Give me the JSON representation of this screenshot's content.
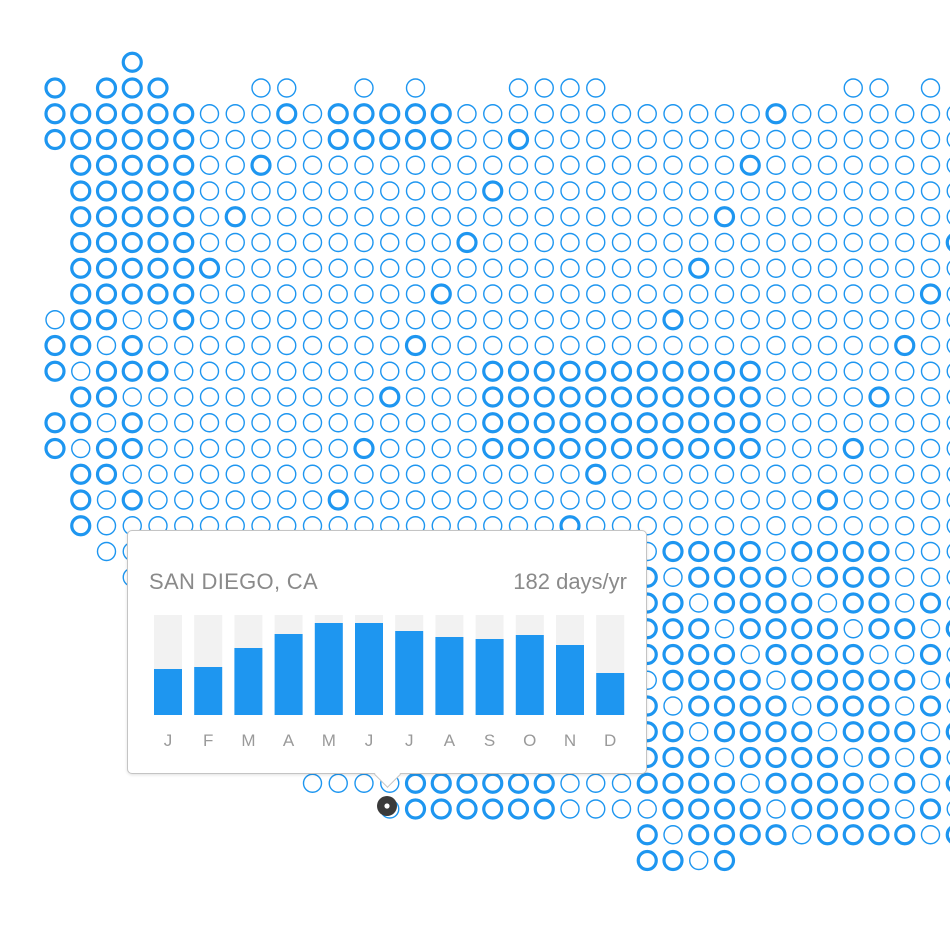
{
  "colors": {
    "dot": "#1e96f0",
    "bar": "#1e96f0",
    "bar_track": "#f2f2f2",
    "tick_label": "#9a9a9a",
    "selected_marker": "#3a3a3a"
  },
  "tooltip": {
    "city": "SAN DIEGO, CA",
    "days": "182 days/yr"
  },
  "chart_data": {
    "type": "bar",
    "categories": [
      "J",
      "F",
      "M",
      "A",
      "M",
      "J",
      "J",
      "A",
      "S",
      "O",
      "N",
      "D"
    ],
    "values": [
      46,
      48,
      67,
      81,
      92,
      92,
      84,
      78,
      76,
      80,
      70,
      42
    ],
    "ylim": [
      0,
      100
    ],
    "grid": false
  }
}
